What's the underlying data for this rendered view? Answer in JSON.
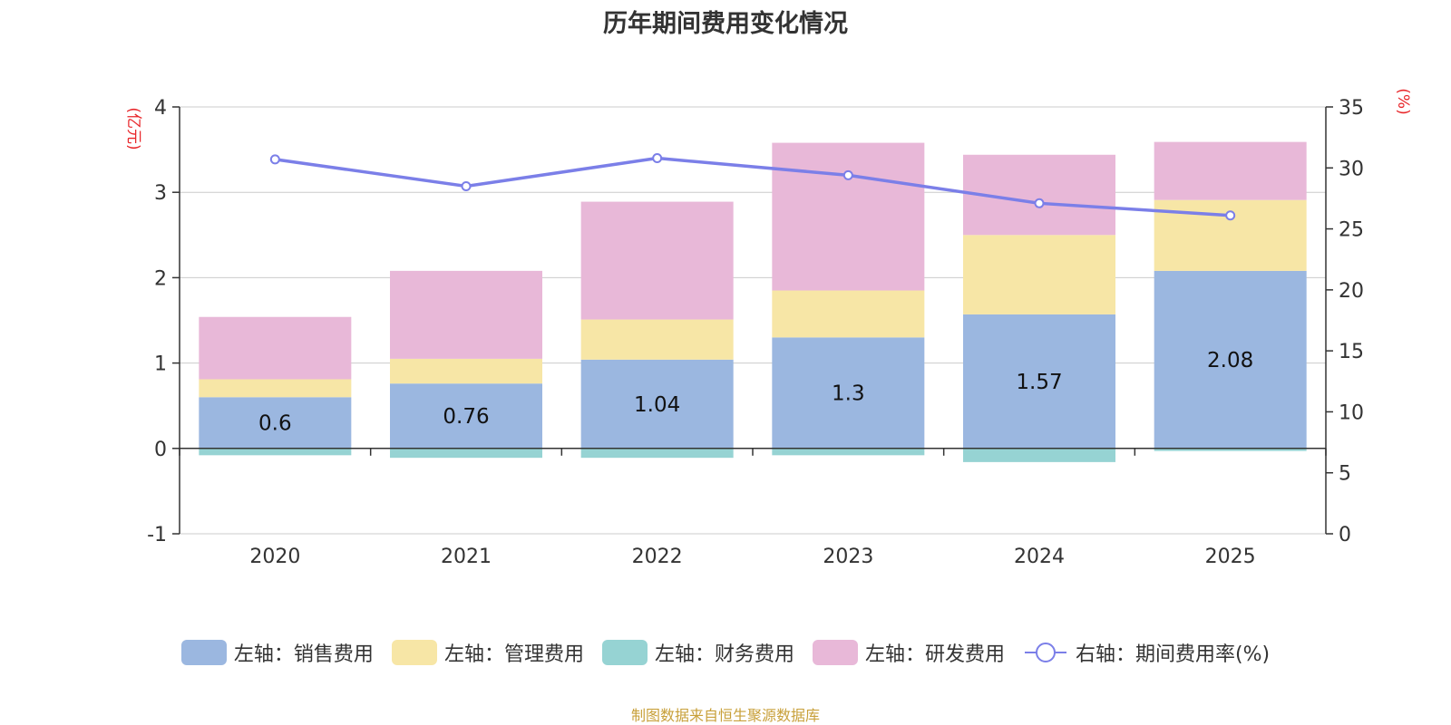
{
  "chart_data": {
    "type": "bar",
    "title": "历年期间费用变化情况",
    "categories": [
      "2020",
      "2021",
      "2022",
      "2023",
      "2024",
      "2025"
    ],
    "left_axis": {
      "unit_label": "(亿元)",
      "ticks": [
        "4",
        "3",
        "2",
        "1",
        "0",
        "-1"
      ],
      "ylim": [
        -1,
        4
      ]
    },
    "right_axis": {
      "unit_label": "(%)",
      "ticks": [
        "35",
        "30",
        "25",
        "20",
        "15",
        "10",
        "5",
        "0"
      ],
      "ylim": [
        0,
        35
      ]
    },
    "series": [
      {
        "name": "左轴：销售费用",
        "axis": "left",
        "type": "bar",
        "color": "#9bb7e0",
        "values": [
          0.6,
          0.76,
          1.04,
          1.3,
          1.57,
          2.08
        ],
        "labels": [
          "0.6",
          "0.76",
          "1.04",
          "1.3",
          "1.57",
          "2.08"
        ]
      },
      {
        "name": "左轴：管理费用",
        "axis": "left",
        "type": "bar",
        "color": "#f7e6a6",
        "values": [
          0.21,
          0.29,
          0.47,
          0.55,
          0.93,
          0.83
        ]
      },
      {
        "name": "左轴：财务费用",
        "axis": "left",
        "type": "bar",
        "color": "#96d3d3",
        "values": [
          -0.08,
          -0.11,
          -0.11,
          -0.08,
          -0.16,
          -0.03
        ]
      },
      {
        "name": "左轴：研发费用",
        "axis": "left",
        "type": "bar",
        "color": "#e8b8d8",
        "values": [
          0.73,
          1.03,
          1.38,
          1.73,
          0.94,
          0.68
        ]
      },
      {
        "name": "右轴：期间费用率(%)",
        "axis": "right",
        "type": "line",
        "color": "#7b7fe8",
        "values": [
          30.7,
          28.5,
          30.8,
          29.4,
          27.1,
          26.1
        ]
      }
    ],
    "source": "制图数据来自恒生聚源数据库"
  },
  "colors": {
    "axis_unit": "#e8262a",
    "source": "#c8a03a"
  }
}
